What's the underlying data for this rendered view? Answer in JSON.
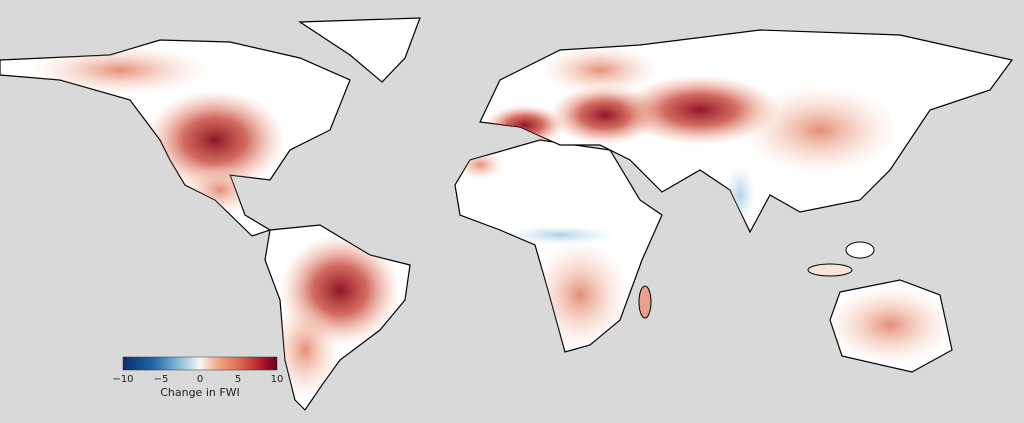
{
  "map": {
    "background_color": "#d9d9d9",
    "land_color": "#ffffff",
    "border_color": "#000000"
  },
  "colorbar": {
    "label": "Change in FWI",
    "min": -10,
    "max": 10,
    "ticks": [
      "−10",
      "−5",
      "0",
      "5",
      "10"
    ],
    "colormap": [
      "#08306b",
      "#2166ac",
      "#92c5de",
      "#f7f7f7",
      "#f4a582",
      "#d6604d",
      "#b2182b",
      "#67001f"
    ]
  }
}
